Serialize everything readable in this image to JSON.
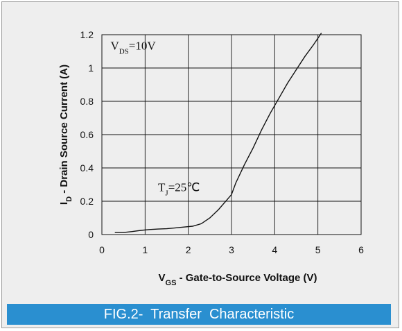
{
  "caption": "FIG.2-  Transfer  Characteristic",
  "chart_data": {
    "type": "line",
    "x_ticks": [
      "0",
      "1",
      "2",
      "3",
      "4",
      "5",
      "6"
    ],
    "y_ticks": [
      "0",
      "0.2",
      "0.4",
      "0.6",
      "0.8",
      "1",
      "1.2"
    ],
    "xlim": [
      0,
      6
    ],
    "ylim": [
      0,
      1.2
    ],
    "grid": true,
    "xlabel": {
      "main": "V",
      "sub": "GS",
      "rest": " - Gate-to-Source Voltage (V)"
    },
    "ylabel": {
      "main": "I",
      "sub": "D",
      "rest": " - Drain Source Current (A)"
    },
    "annotations": [
      {
        "main": "V",
        "sub": "DS",
        "rest": "=10V",
        "x": 0.2,
        "y": 1.11
      },
      {
        "main": "T",
        "sub": "J",
        "rest": "=25℃",
        "x": 1.3,
        "y": 0.26
      }
    ],
    "series": [
      {
        "x": [
          0.3,
          0.5,
          0.7,
          0.9,
          1.1,
          1.3,
          1.5,
          1.7,
          1.9,
          2.1,
          2.3,
          2.5,
          2.7,
          2.9,
          3.0,
          3.1,
          3.3,
          3.5,
          3.7,
          3.9,
          4.1,
          4.3,
          4.5,
          4.7,
          4.9,
          5.08
        ],
        "y": [
          0.012,
          0.012,
          0.018,
          0.025,
          0.03,
          0.033,
          0.035,
          0.04,
          0.045,
          0.05,
          0.065,
          0.1,
          0.15,
          0.21,
          0.24,
          0.31,
          0.42,
          0.52,
          0.63,
          0.73,
          0.82,
          0.91,
          0.99,
          1.07,
          1.14,
          1.21
        ]
      }
    ]
  }
}
